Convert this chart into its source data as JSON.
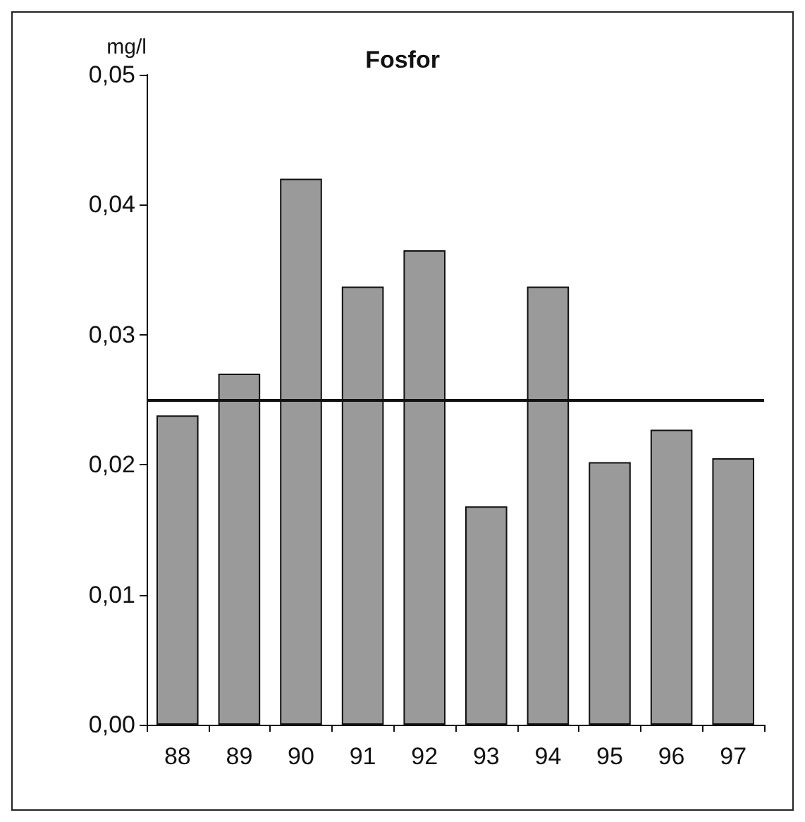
{
  "chart_data": {
    "type": "bar",
    "title": "Fosfor",
    "ylabel": "mg/l",
    "categories": [
      "88",
      "89",
      "90",
      "91",
      "92",
      "93",
      "94",
      "95",
      "96",
      "97"
    ],
    "values": [
      0.0238,
      0.027,
      0.042,
      0.0337,
      0.0365,
      0.0168,
      0.0337,
      0.0202,
      0.0227,
      0.0205
    ],
    "color": "#9a9a9a",
    "ylim": [
      0,
      0.05
    ],
    "yticks": [
      {
        "value": 0,
        "label": "0,00"
      },
      {
        "value": 0.01,
        "label": "0,01"
      },
      {
        "value": 0.02,
        "label": "0,02"
      },
      {
        "value": 0.03,
        "label": "0,03"
      },
      {
        "value": 0.04,
        "label": "0,04"
      },
      {
        "value": 0.05,
        "label": "0,05"
      }
    ],
    "ref_lines": [
      {
        "axis": "y",
        "value": 0.025,
        "color": "#111111",
        "line_style": "solid"
      }
    ],
    "grid": false
  }
}
